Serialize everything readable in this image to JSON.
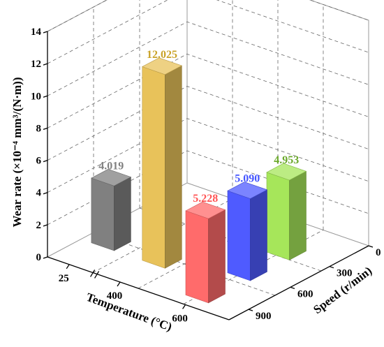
{
  "chart_data": {
    "type": "bar",
    "zlabel": "Wear rate (×10⁻⁴ mm³/(N·m))",
    "zlim": [
      0,
      14
    ],
    "zticks": [
      "0",
      "2",
      "4",
      "6",
      "8",
      "10",
      "12",
      "14"
    ],
    "xlabel": "Temperature (°C)",
    "xticks": [
      "25",
      "400",
      "600"
    ],
    "ylabel": "Speed (r/min)",
    "yticks": [
      "0",
      "300",
      "600",
      "900"
    ],
    "grid": true,
    "bars": [
      {
        "group": "Temperature",
        "category": "25",
        "value": 4.019,
        "label": "4.019",
        "color": "#808080"
      },
      {
        "group": "Temperature",
        "category": "400",
        "value": 12.025,
        "label": "12.025",
        "color": "#e8c25a"
      },
      {
        "group": "Speed",
        "category": "900",
        "value": 5.228,
        "label": "5.228",
        "color": "#ff6b6b"
      },
      {
        "group": "Speed",
        "category": "600",
        "value": 5.09,
        "label": "5.090",
        "color": "#4f5bff"
      },
      {
        "group": "Speed",
        "category": "300",
        "value": 4.953,
        "label": "4.953",
        "color": "#a6e65a"
      }
    ],
    "label_colors": [
      "#808080",
      "#c9a227",
      "#ff5555",
      "#4455ff",
      "#6aa82a"
    ]
  }
}
